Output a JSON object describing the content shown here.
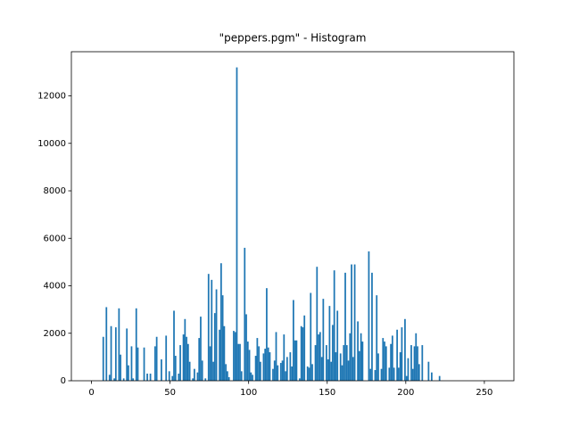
{
  "chart_data": {
    "type": "histogram",
    "title": "\"peppers.pgm\" - Histogram",
    "color": "#1f77b4",
    "bins": [
      0,
      1,
      2,
      3,
      4,
      5,
      6,
      7,
      8,
      9,
      10,
      11,
      12,
      13,
      14,
      15,
      16,
      17,
      18,
      19,
      20,
      21,
      22,
      23,
      24,
      25,
      26,
      27,
      28,
      29,
      30,
      31,
      32,
      33,
      34,
      35,
      36,
      37,
      38,
      39,
      40,
      41,
      42,
      43,
      44,
      45,
      46,
      47,
      48,
      49,
      50,
      51,
      52,
      53,
      54,
      55,
      56,
      57,
      58,
      59,
      60,
      61,
      62,
      63,
      64,
      65,
      66,
      67,
      68,
      69,
      70,
      71,
      72,
      73,
      74,
      75,
      76,
      77,
      78,
      79,
      80,
      81,
      82,
      83,
      84,
      85,
      86,
      87,
      88,
      89,
      90,
      91,
      92,
      93,
      94,
      95,
      96,
      97,
      98,
      99,
      100,
      101,
      102,
      103,
      104,
      105,
      106,
      107,
      108,
      109,
      110,
      111,
      112,
      113,
      114,
      115,
      116,
      117,
      118,
      119,
      120,
      121,
      122,
      123,
      124,
      125,
      126,
      127,
      128,
      129,
      130,
      131,
      132,
      133,
      134,
      135,
      136,
      137,
      138,
      139,
      140,
      141,
      142,
      143,
      144,
      145,
      146,
      147,
      148,
      149,
      150,
      151,
      152,
      153,
      154,
      155,
      156,
      157,
      158,
      159,
      160,
      161,
      162,
      163,
      164,
      165,
      166,
      167,
      168,
      169,
      170,
      171,
      172,
      173,
      174,
      175,
      176,
      177,
      178,
      179,
      180,
      181,
      182,
      183,
      184,
      185,
      186,
      187,
      188,
      189,
      190,
      191,
      192,
      193,
      194,
      195,
      196,
      197,
      198,
      199,
      200,
      201,
      202,
      203,
      204,
      205,
      206,
      207,
      208,
      209,
      210,
      211,
      212,
      213,
      214,
      215,
      216,
      217,
      218,
      219,
      220,
      221,
      222,
      223,
      224,
      225,
      226,
      227,
      228,
      229,
      230,
      231,
      232,
      233,
      234,
      235,
      236,
      237,
      238,
      239,
      240,
      241,
      242,
      243,
      244,
      245,
      246,
      247,
      248,
      249,
      250,
      251,
      252,
      253,
      254,
      255,
      256
    ],
    "values": [
      0,
      0,
      0,
      0,
      0,
      0,
      0,
      1850,
      0,
      3100,
      0,
      250,
      2300,
      0,
      100,
      2250,
      0,
      3050,
      1100,
      0,
      100,
      0,
      2200,
      650,
      0,
      1450,
      100,
      0,
      3050,
      1400,
      0,
      0,
      0,
      1400,
      0,
      300,
      0,
      300,
      0,
      0,
      1450,
      1850,
      0,
      0,
      900,
      0,
      0,
      1900,
      0,
      400,
      0,
      200,
      2950,
      1050,
      0,
      300,
      1500,
      0,
      1950,
      2600,
      1850,
      1550,
      800,
      0,
      100,
      500,
      0,
      350,
      1800,
      2700,
      850,
      0,
      100,
      0,
      4500,
      1450,
      4250,
      800,
      2850,
      3850,
      0,
      2150,
      4950,
      3600,
      2300,
      700,
      400,
      150,
      0,
      0,
      2100,
      2050,
      13200,
      1550,
      1550,
      400,
      0,
      5600,
      2800,
      1650,
      1300,
      350,
      250,
      0,
      1050,
      1800,
      1450,
      800,
      0,
      1150,
      1350,
      3900,
      1400,
      1200,
      0,
      500,
      850,
      2050,
      650,
      0,
      750,
      850,
      1950,
      400,
      1000,
      0,
      1200,
      600,
      3400,
      1700,
      1700,
      0,
      100,
      2300,
      2250,
      2750,
      0,
      600,
      550,
      3700,
      700,
      0,
      1500,
      4800,
      1950,
      2050,
      1000,
      3450,
      0,
      1500,
      900,
      3150,
      800,
      2350,
      4650,
      1200,
      2950,
      0,
      1150,
      650,
      1500,
      4550,
      1500,
      850,
      2000,
      4900,
      1000,
      4900,
      0,
      2500,
      1250,
      2000,
      1650,
      0,
      0,
      0,
      5450,
      500,
      4550,
      0,
      450,
      3600,
      1150,
      0,
      500,
      1800,
      1650,
      1450,
      0,
      550,
      1550,
      1900,
      550,
      0,
      2150,
      550,
      1200,
      2250,
      0,
      2600,
      200,
      950,
      0,
      1500,
      500,
      1450,
      2000,
      1450,
      700,
      0,
      1500,
      0,
      0,
      0,
      800,
      0,
      350,
      0,
      0,
      0,
      0,
      200,
      0,
      0,
      0,
      0,
      0,
      0,
      0,
      0,
      0,
      0,
      0,
      0,
      0,
      0,
      0,
      0,
      0,
      0,
      0,
      0,
      0,
      0,
      0,
      0,
      0,
      0,
      0,
      0,
      0,
      0,
      0,
      0,
      0,
      0
    ],
    "xlim": [
      -12.8,
      268.8
    ],
    "ylim": [
      0,
      13860
    ],
    "xticks": [
      0,
      50,
      100,
      150,
      200,
      250
    ],
    "yticks": [
      0,
      2000,
      4000,
      6000,
      8000,
      10000,
      12000
    ]
  }
}
